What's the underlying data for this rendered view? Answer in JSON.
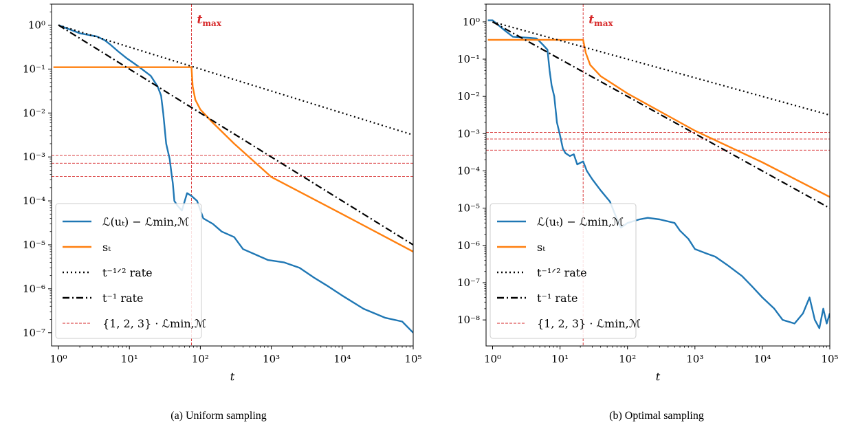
{
  "chart_data": [
    {
      "type": "line",
      "caption": "(a) Uniform sampling",
      "xlabel": "t",
      "xscale": "log",
      "yscale": "log",
      "xlim": [
        0.8,
        100000
      ],
      "ylim": [
        5e-08,
        3
      ],
      "xticks": [
        "10⁰",
        "10¹",
        "10²",
        "10³",
        "10⁴",
        "10⁵"
      ],
      "yticks": [
        "10⁻⁷",
        "10⁻⁶",
        "10⁻⁵",
        "10⁻⁴",
        "10⁻³",
        "10⁻²",
        "10⁻¹",
        "10⁰"
      ],
      "vline": {
        "x": 75,
        "label": "t",
        "label_sub": "max",
        "color": "#d62728"
      },
      "hlines": [
        0.00036,
        0.00072,
        0.00108
      ],
      "legend_position": "lower-left",
      "series": [
        {
          "name": "ℒ(uₜ) − ℒmin,ℳ",
          "color": "#1f77b4",
          "style": "solid",
          "points": [
            [
              1,
              1.0
            ],
            [
              2,
              0.65
            ],
            [
              3.5,
              0.55
            ],
            [
              4.5,
              0.45
            ],
            [
              5.5,
              0.35
            ],
            [
              7,
              0.25
            ],
            [
              9,
              0.18
            ],
            [
              12,
              0.13
            ],
            [
              15,
              0.1
            ],
            [
              20,
              0.07
            ],
            [
              25,
              0.04
            ],
            [
              28,
              0.025
            ],
            [
              30,
              0.01
            ],
            [
              33,
              0.002
            ],
            [
              37,
              0.0009
            ],
            [
              39,
              0.00045
            ],
            [
              41,
              0.00025
            ],
            [
              43,
              0.0001
            ],
            [
              47,
              8e-05
            ],
            [
              55,
              6e-05
            ],
            [
              65,
              0.00015
            ],
            [
              75,
              0.00013
            ],
            [
              90,
              0.0001
            ],
            [
              110,
              4e-05
            ],
            [
              150,
              3e-05
            ],
            [
              200,
              2e-05
            ],
            [
              300,
              1.5e-05
            ],
            [
              400,
              8e-06
            ],
            [
              600,
              6e-06
            ],
            [
              900,
              4.5e-06
            ],
            [
              1500,
              4e-06
            ],
            [
              2500,
              3e-06
            ],
            [
              4000,
              1.8e-06
            ],
            [
              6000,
              1.2e-06
            ],
            [
              10000,
              7e-07
            ],
            [
              20000,
              3.5e-07
            ],
            [
              40000,
              2.2e-07
            ],
            [
              70000,
              1.8e-07
            ],
            [
              100000,
              1e-07
            ]
          ]
        },
        {
          "name": "sₜ",
          "color": "#ff7f0e",
          "style": "solid",
          "points": [
            [
              0.85,
              0.11
            ],
            [
              75,
              0.11
            ],
            [
              78,
              0.04
            ],
            [
              85,
              0.02
            ],
            [
              100,
              0.012
            ],
            [
              150,
              0.006
            ],
            [
              300,
              0.002
            ],
            [
              1000,
              0.00035
            ],
            [
              10000,
              5e-05
            ],
            [
              100000,
              7e-06
            ]
          ]
        },
        {
          "name": "t⁻¹ᐟ² rate",
          "color": "#000000",
          "style": "dotted",
          "points": [
            [
              1,
              1
            ],
            [
              100000,
              0.00316
            ]
          ]
        },
        {
          "name": "t⁻¹ rate",
          "color": "#000000",
          "style": "dashdot",
          "points": [
            [
              1,
              1
            ],
            [
              100000,
              1e-05
            ]
          ]
        },
        {
          "name": "{1, 2, 3} · ℒmin,ℳ",
          "color": "#d62728",
          "style": "dashed-thin"
        }
      ]
    },
    {
      "type": "line",
      "caption": "(b) Optimal sampling",
      "xlabel": "t",
      "xscale": "log",
      "yscale": "log",
      "xlim": [
        0.8,
        100000
      ],
      "ylim": [
        2e-09,
        3
      ],
      "xticks": [
        "10⁰",
        "10¹",
        "10²",
        "10³",
        "10⁴",
        "10⁵"
      ],
      "yticks": [
        "10⁻⁸",
        "10⁻⁷",
        "10⁻⁶",
        "10⁻⁵",
        "10⁻⁴",
        "10⁻³",
        "10⁻²",
        "10⁻¹",
        "10⁰"
      ],
      "vline": {
        "x": 22,
        "label": "t",
        "label_sub": "max",
        "color": "#d62728"
      },
      "hlines": [
        0.00036,
        0.00072,
        0.00108
      ],
      "legend_position": "lower-left",
      "series": [
        {
          "name": "ℒ(uₜ) − ℒmin,ℳ",
          "color": "#1f77b4",
          "style": "solid",
          "points": [
            [
              0.85,
              1.1
            ],
            [
              1,
              1.1
            ],
            [
              1.5,
              0.6
            ],
            [
              2,
              0.4
            ],
            [
              3,
              0.38
            ],
            [
              4.5,
              0.36
            ],
            [
              5.5,
              0.25
            ],
            [
              6.5,
              0.18
            ],
            [
              7,
              0.05
            ],
            [
              7.5,
              0.02
            ],
            [
              8.2,
              0.01
            ],
            [
              9,
              0.002
            ],
            [
              10,
              0.0009
            ],
            [
              11,
              0.0004
            ],
            [
              12,
              0.0003
            ],
            [
              14,
              0.00025
            ],
            [
              16,
              0.00028
            ],
            [
              18,
              0.00015
            ],
            [
              22,
              0.00018
            ],
            [
              25,
              0.0001
            ],
            [
              30,
              6e-05
            ],
            [
              40,
              3e-05
            ],
            [
              55,
              1.5e-05
            ],
            [
              70,
              5e-06
            ],
            [
              80,
              3e-06
            ],
            [
              100,
              4e-06
            ],
            [
              150,
              5e-06
            ],
            [
              200,
              5.5e-06
            ],
            [
              300,
              5e-06
            ],
            [
              500,
              4e-06
            ],
            [
              600,
              2.5e-06
            ],
            [
              800,
              1.5e-06
            ],
            [
              1000,
              8e-07
            ],
            [
              1500,
              6e-07
            ],
            [
              2000,
              5e-07
            ],
            [
              3000,
              3e-07
            ],
            [
              5000,
              1.5e-07
            ],
            [
              7000,
              8e-08
            ],
            [
              10000,
              4e-08
            ],
            [
              15000,
              2e-08
            ],
            [
              20000,
              1e-08
            ],
            [
              30000,
              8e-09
            ],
            [
              40000,
              1.5e-08
            ],
            [
              50000,
              4e-08
            ],
            [
              60000,
              1e-08
            ],
            [
              70000,
              6e-09
            ],
            [
              80000,
              2e-08
            ],
            [
              90000,
              8e-09
            ],
            [
              100000,
              1.5e-08
            ]
          ]
        },
        {
          "name": "sₜ",
          "color": "#ff7f0e",
          "style": "solid",
          "points": [
            [
              0.85,
              0.33
            ],
            [
              22,
              0.33
            ],
            [
              24,
              0.15
            ],
            [
              28,
              0.07
            ],
            [
              40,
              0.035
            ],
            [
              100,
              0.012
            ],
            [
              1000,
              0.0012
            ],
            [
              10000,
              0.00017
            ],
            [
              100000,
              2e-05
            ]
          ]
        },
        {
          "name": "t⁻¹ᐟ² rate",
          "color": "#000000",
          "style": "dotted",
          "points": [
            [
              1,
              1
            ],
            [
              100000,
              0.00316
            ]
          ]
        },
        {
          "name": "t⁻¹ rate",
          "color": "#000000",
          "style": "dashdot",
          "points": [
            [
              1,
              1
            ],
            [
              100000,
              1e-05
            ]
          ]
        },
        {
          "name": "{1, 2, 3} · ℒmin,ℳ",
          "color": "#d62728",
          "style": "dashed-thin"
        }
      ]
    }
  ]
}
